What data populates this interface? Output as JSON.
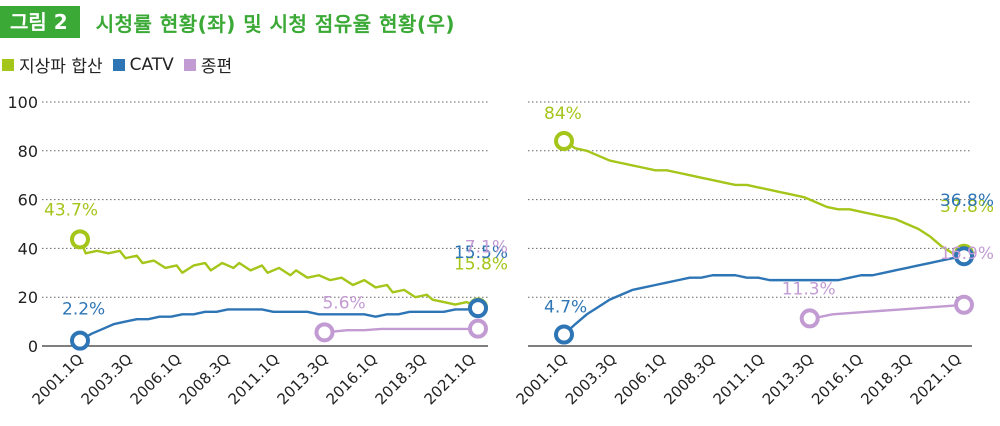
{
  "header": {
    "figure_label": "그림 2",
    "title": "시청률 현황(좌) 및 시청 점유율 현황(우)"
  },
  "colors": {
    "terrestrial": "#a4c51a",
    "catv": "#2e75b6",
    "general": "#c39bd3",
    "accent": "#3aa935"
  },
  "legend": [
    {
      "key": "terrestrial",
      "label": "지상파 합산"
    },
    {
      "key": "catv",
      "label": "CATV"
    },
    {
      "key": "general",
      "label": "종편"
    }
  ],
  "chart_data": [
    {
      "type": "line",
      "title": "시청률 현황",
      "ylim": [
        0,
        100
      ],
      "yticks": [
        0,
        20,
        40,
        60,
        80,
        100
      ],
      "xticks": [
        "2001.1Q",
        "2003.3Q",
        "2006.1Q",
        "2008.3Q",
        "2011.1Q",
        "2013.3Q",
        "2016.1Q",
        "2018.3Q",
        "2021.1Q"
      ],
      "grid": true,
      "series": [
        {
          "key": "terrestrial",
          "name": "지상파 합산",
          "points": [
            [
              0,
              43.7
            ],
            [
              1,
              38
            ],
            [
              3,
              39
            ],
            [
              5,
              38
            ],
            [
              7,
              39
            ],
            [
              8,
              36
            ],
            [
              10,
              37
            ],
            [
              11,
              34
            ],
            [
              13,
              35
            ],
            [
              15,
              32
            ],
            [
              17,
              33
            ],
            [
              18,
              30
            ],
            [
              20,
              33
            ],
            [
              22,
              34
            ],
            [
              23,
              31
            ],
            [
              25,
              34
            ],
            [
              27,
              32
            ],
            [
              28,
              34
            ],
            [
              30,
              31
            ],
            [
              32,
              33
            ],
            [
              33,
              30
            ],
            [
              35,
              32
            ],
            [
              37,
              29
            ],
            [
              38,
              31
            ],
            [
              40,
              28
            ],
            [
              42,
              29
            ],
            [
              44,
              27
            ],
            [
              46,
              28
            ],
            [
              48,
              25
            ],
            [
              50,
              27
            ],
            [
              52,
              24
            ],
            [
              54,
              25
            ],
            [
              55,
              22
            ],
            [
              57,
              23
            ],
            [
              59,
              20
            ],
            [
              61,
              21
            ],
            [
              62,
              19
            ],
            [
              64,
              18
            ],
            [
              66,
              17
            ],
            [
              68,
              18
            ],
            [
              70,
              15.8
            ]
          ],
          "start_label": "43.7%",
          "end_label": "15.8%"
        },
        {
          "key": "catv",
          "name": "CATV",
          "points": [
            [
              0,
              2.2
            ],
            [
              2,
              5
            ],
            [
              4,
              7
            ],
            [
              6,
              9
            ],
            [
              8,
              10
            ],
            [
              10,
              11
            ],
            [
              12,
              11
            ],
            [
              14,
              12
            ],
            [
              16,
              12
            ],
            [
              18,
              13
            ],
            [
              20,
              13
            ],
            [
              22,
              14
            ],
            [
              24,
              14
            ],
            [
              26,
              15
            ],
            [
              28,
              15
            ],
            [
              30,
              15
            ],
            [
              32,
              15
            ],
            [
              34,
              14
            ],
            [
              36,
              14
            ],
            [
              38,
              14
            ],
            [
              40,
              14
            ],
            [
              42,
              13
            ],
            [
              44,
              13
            ],
            [
              46,
              13
            ],
            [
              48,
              13
            ],
            [
              50,
              13
            ],
            [
              52,
              12
            ],
            [
              54,
              13
            ],
            [
              56,
              13
            ],
            [
              58,
              14
            ],
            [
              60,
              14
            ],
            [
              62,
              14
            ],
            [
              64,
              14
            ],
            [
              66,
              15
            ],
            [
              68,
              15
            ],
            [
              70,
              15.5
            ]
          ],
          "start_label": "2.2%",
          "end_label": "15.5%"
        },
        {
          "key": "general",
          "name": "종편",
          "points": [
            [
              43,
              5.6
            ],
            [
              45,
              6
            ],
            [
              47,
              6.5
            ],
            [
              50,
              6.5
            ],
            [
              53,
              7
            ],
            [
              56,
              7
            ],
            [
              59,
              7
            ],
            [
              62,
              7
            ],
            [
              65,
              7
            ],
            [
              68,
              7
            ],
            [
              70,
              7.1
            ]
          ],
          "start_label": "5.6%",
          "end_label": "7.1%"
        }
      ]
    },
    {
      "type": "line",
      "title": "시청 점유율 현황",
      "ylim": [
        0,
        100
      ],
      "yticks": [
        0,
        20,
        40,
        60,
        80,
        100
      ],
      "xticks": [
        "2001.1Q",
        "2003.3Q",
        "2006.1Q",
        "2008.3Q",
        "2011.1Q",
        "2013.3Q",
        "2016.1Q",
        "2018.3Q",
        "2021.1Q"
      ],
      "grid": true,
      "series": [
        {
          "key": "terrestrial",
          "name": "지상파 합산",
          "points": [
            [
              0,
              84
            ],
            [
              2,
              81
            ],
            [
              4,
              80
            ],
            [
              6,
              78
            ],
            [
              8,
              76
            ],
            [
              10,
              75
            ],
            [
              12,
              74
            ],
            [
              14,
              73
            ],
            [
              16,
              72
            ],
            [
              18,
              72
            ],
            [
              20,
              71
            ],
            [
              22,
              70
            ],
            [
              24,
              69
            ],
            [
              26,
              68
            ],
            [
              28,
              67
            ],
            [
              30,
              66
            ],
            [
              32,
              66
            ],
            [
              34,
              65
            ],
            [
              36,
              64
            ],
            [
              38,
              63
            ],
            [
              40,
              62
            ],
            [
              42,
              61
            ],
            [
              44,
              59
            ],
            [
              46,
              57
            ],
            [
              48,
              56
            ],
            [
              50,
              56
            ],
            [
              52,
              55
            ],
            [
              54,
              54
            ],
            [
              56,
              53
            ],
            [
              58,
              52
            ],
            [
              60,
              50
            ],
            [
              62,
              48
            ],
            [
              64,
              45
            ],
            [
              66,
              41
            ],
            [
              68,
              38
            ],
            [
              70,
              37.8
            ]
          ],
          "start_label": "84%",
          "end_label": "37.8%"
        },
        {
          "key": "catv",
          "name": "CATV",
          "points": [
            [
              0,
              4.7
            ],
            [
              2,
              9
            ],
            [
              4,
              13
            ],
            [
              6,
              16
            ],
            [
              8,
              19
            ],
            [
              10,
              21
            ],
            [
              12,
              23
            ],
            [
              14,
              24
            ],
            [
              16,
              25
            ],
            [
              18,
              26
            ],
            [
              20,
              27
            ],
            [
              22,
              28
            ],
            [
              24,
              28
            ],
            [
              26,
              29
            ],
            [
              28,
              29
            ],
            [
              30,
              29
            ],
            [
              32,
              28
            ],
            [
              34,
              28
            ],
            [
              36,
              27
            ],
            [
              38,
              27
            ],
            [
              40,
              27
            ],
            [
              42,
              27
            ],
            [
              44,
              27
            ],
            [
              46,
              27
            ],
            [
              48,
              27
            ],
            [
              50,
              28
            ],
            [
              52,
              29
            ],
            [
              54,
              29
            ],
            [
              56,
              30
            ],
            [
              58,
              31
            ],
            [
              60,
              32
            ],
            [
              62,
              33
            ],
            [
              64,
              34
            ],
            [
              66,
              35
            ],
            [
              68,
              36
            ],
            [
              70,
              36.8
            ]
          ],
          "start_label": "4.7%",
          "end_label": "36.8%"
        },
        {
          "key": "general",
          "name": "종편",
          "points": [
            [
              43,
              11.3
            ],
            [
              45,
              12
            ],
            [
              47,
              13
            ],
            [
              50,
              13.5
            ],
            [
              53,
              14
            ],
            [
              56,
              14.5
            ],
            [
              59,
              15
            ],
            [
              62,
              15.5
            ],
            [
              65,
              16
            ],
            [
              68,
              16.5
            ],
            [
              70,
              16.9
            ]
          ],
          "start_label": "11.3%",
          "end_label": "16.9%"
        }
      ]
    }
  ]
}
